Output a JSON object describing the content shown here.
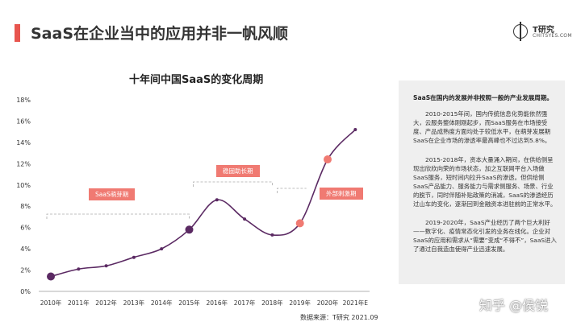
{
  "header": {
    "title": "SaaS在企业当中的应用并非一帆风顺",
    "logo_text": "T研究",
    "logo_sub": "CHITSYES.COM"
  },
  "chart_data": {
    "type": "line",
    "title": "十年间中国SaaS的变化周期",
    "categories": [
      "2010年",
      "2011年",
      "2012年",
      "2013年",
      "2014年",
      "2015年",
      "2016年",
      "2017年",
      "2018年",
      "2019年",
      "2020年",
      "2021年E"
    ],
    "values": [
      1.4,
      2.1,
      2.4,
      3.2,
      4.0,
      5.8,
      8.6,
      6.8,
      5.3,
      6.4,
      12.4,
      15.2
    ],
    "yticks": [
      "0%",
      "2%",
      "4%",
      "6%",
      "8%",
      "10%",
      "12%",
      "14%",
      "16%",
      "18%"
    ],
    "ylim": [
      0,
      18
    ],
    "grid": false,
    "highlight_indices": [
      0,
      5,
      9,
      10
    ],
    "annotations": [
      "SaaS萌芽期",
      "稳固助长期",
      "外部刺激期"
    ],
    "line_color": "#5b2a63",
    "highlight_color": "#f07a72"
  },
  "side_panel": {
    "heading": "SaaS在国内的发展并非按照一般的产业发展周期。",
    "paragraphs": [
      "2010-2015年间，国内传统信息化势能依然强大，云服务整体刚刚起步，而SaaS服务在市场接受度、产品成熟度方面均处于较低水平，在萌芽发展期SaaS在企业市场的渗透率最高峰也不过达到5.8%。",
      "2015-2018年，资本大量涌入期间，在供给侧呈现出欣欣向荣的市场状态，加之互联网平台入场做SaaS服务，短时间内拉升SaaS的渗透。但供给侧SaaS产品能力、服务能力与需求侧服务、场景、行业的脱节，同时伴随补贴政策的消减，SaaS的渗透经历过山车的变化，逐渐回到金融资本进驻前的正常水平。",
      "2019-2020年，SaaS产业经历了两个巨大利好——数字化、疫情常态化引发的业务在线化。企业对SaaS的应用和需求从“需要”变成“不得不”，SaaS进入了通过自我造血使得产业迅速发展。"
    ]
  },
  "footer": {
    "source": "数据来源：T研究 2021.09",
    "watermark": "知乎 @侯锐"
  }
}
